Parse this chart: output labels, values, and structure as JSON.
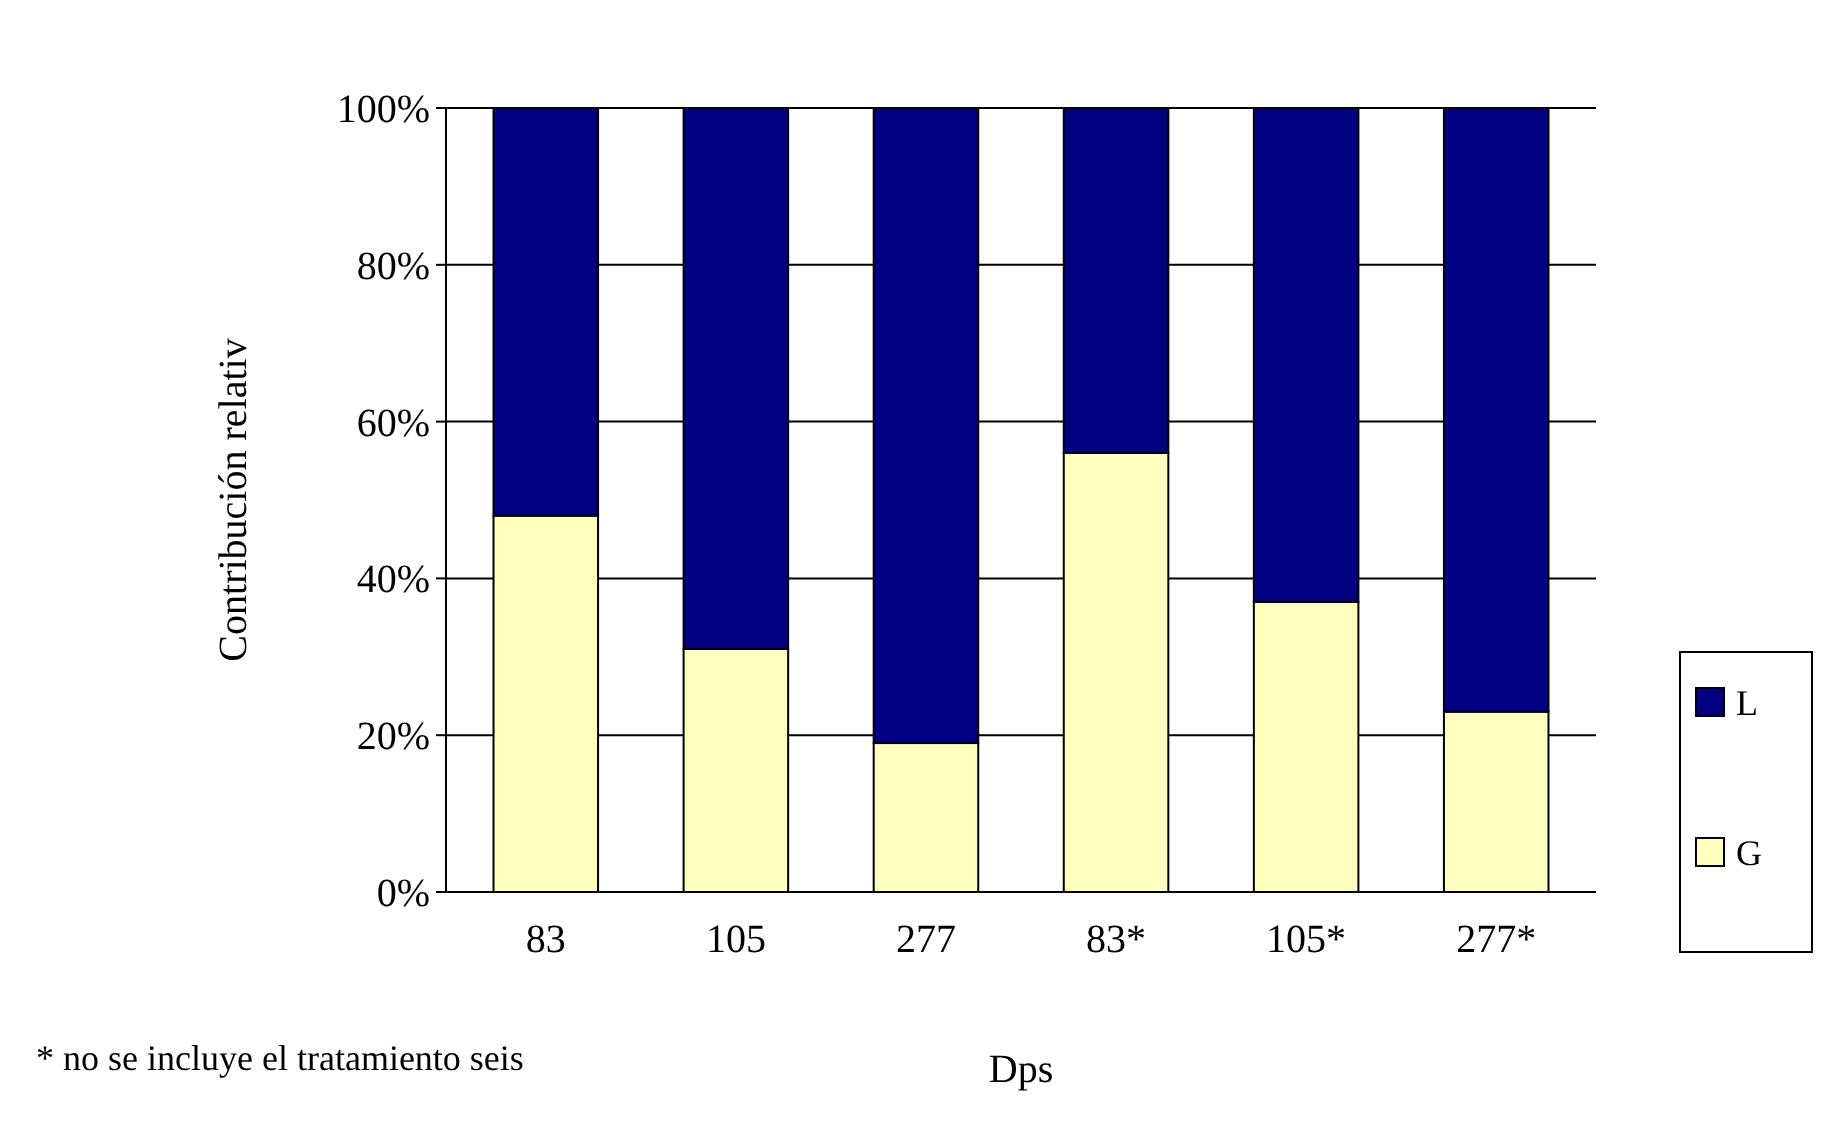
{
  "chart_data": {
    "type": "bar",
    "stacked": true,
    "xlabel": "Dps",
    "ylabel": "Contribución relativ",
    "categories": [
      "83",
      "105",
      "277",
      "83*",
      "105*",
      "277*"
    ],
    "series": [
      {
        "name": "G",
        "color": "#ffffc0",
        "values": [
          48,
          31,
          19,
          56,
          37,
          23
        ]
      },
      {
        "name": "L",
        "color": "#000080",
        "values": [
          52,
          69,
          81,
          44,
          63,
          77
        ]
      }
    ],
    "ylim": [
      0,
      100
    ],
    "yticks": [
      {
        "value": 0,
        "label": "0%"
      },
      {
        "value": 20,
        "label": "20%"
      },
      {
        "value": 40,
        "label": "40%"
      },
      {
        "value": 60,
        "label": "60%"
      },
      {
        "value": 80,
        "label": "80%"
      },
      {
        "value": 100,
        "label": "100%"
      }
    ],
    "grid": "y",
    "legend": "right",
    "annotations": [
      "* no se incluye el tratamiento seis"
    ]
  }
}
